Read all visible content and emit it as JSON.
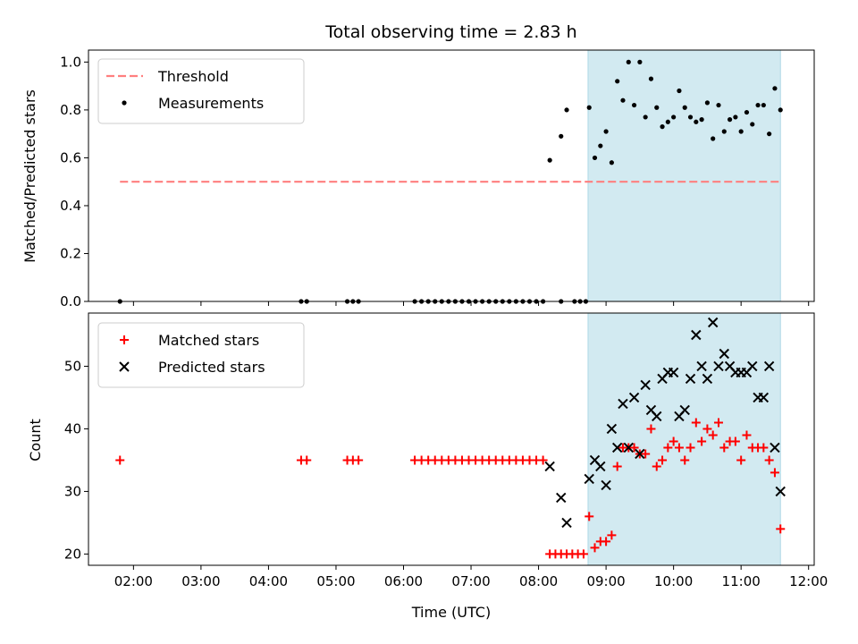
{
  "chart_data": [
    {
      "type": "scatter",
      "title": "Total observing time = 2.83 h",
      "ylabel": "Matched/Predicted stars",
      "xlabel": "",
      "ylim": [
        0,
        1.05
      ],
      "yticks": [
        "0.0",
        "0.2",
        "0.4",
        "0.6",
        "0.8",
        "1.0"
      ],
      "threshold": {
        "name": "Threshold",
        "value": 0.5,
        "x_range": [
          "01:48",
          "11:36"
        ],
        "color": "#ff7f7f",
        "style": "dashed"
      },
      "observing_window": {
        "start": "08:44",
        "end": "11:35",
        "color": "#add8e6"
      },
      "legend_position": "upper-left",
      "series": [
        {
          "name": "Measurements",
          "marker": "dot",
          "color": "#000000",
          "points": [
            [
              "01:48",
              0
            ],
            [
              "04:29",
              0
            ],
            [
              "04:34",
              0
            ],
            [
              "05:10",
              0
            ],
            [
              "05:15",
              0
            ],
            [
              "05:20",
              0
            ],
            [
              "06:10",
              0
            ],
            [
              "06:16",
              0
            ],
            [
              "06:22",
              0
            ],
            [
              "06:28",
              0
            ],
            [
              "06:34",
              0
            ],
            [
              "06:40",
              0
            ],
            [
              "06:46",
              0
            ],
            [
              "06:52",
              0
            ],
            [
              "06:58",
              0
            ],
            [
              "07:04",
              0
            ],
            [
              "07:10",
              0
            ],
            [
              "07:16",
              0
            ],
            [
              "07:22",
              0
            ],
            [
              "07:28",
              0
            ],
            [
              "07:34",
              0
            ],
            [
              "07:40",
              0
            ],
            [
              "07:46",
              0
            ],
            [
              "07:52",
              0
            ],
            [
              "07:58",
              0
            ],
            [
              "08:04",
              0
            ],
            [
              "08:20",
              0
            ],
            [
              "08:32",
              0
            ],
            [
              "08:37",
              0
            ],
            [
              "08:42",
              0
            ],
            [
              "08:10",
              0.59
            ],
            [
              "08:20",
              0.69
            ],
            [
              "08:25",
              0.8
            ],
            [
              "08:45",
              0.81
            ],
            [
              "08:50",
              0.6
            ],
            [
              "08:55",
              0.65
            ],
            [
              "09:00",
              0.71
            ],
            [
              "09:05",
              0.58
            ],
            [
              "09:10",
              0.92
            ],
            [
              "09:15",
              0.84
            ],
            [
              "09:20",
              1.0
            ],
            [
              "09:25",
              0.82
            ],
            [
              "09:30",
              1.0
            ],
            [
              "09:35",
              0.77
            ],
            [
              "09:40",
              0.93
            ],
            [
              "09:45",
              0.81
            ],
            [
              "09:50",
              0.73
            ],
            [
              "09:55",
              0.75
            ],
            [
              "10:00",
              0.77
            ],
            [
              "10:05",
              0.88
            ],
            [
              "10:10",
              0.81
            ],
            [
              "10:15",
              0.77
            ],
            [
              "10:20",
              0.75
            ],
            [
              "10:25",
              0.76
            ],
            [
              "10:30",
              0.83
            ],
            [
              "10:35",
              0.68
            ],
            [
              "10:40",
              0.82
            ],
            [
              "10:45",
              0.71
            ],
            [
              "10:50",
              0.76
            ],
            [
              "10:55",
              0.77
            ],
            [
              "11:00",
              0.71
            ],
            [
              "11:05",
              0.79
            ],
            [
              "11:10",
              0.74
            ],
            [
              "11:15",
              0.82
            ],
            [
              "11:20",
              0.82
            ],
            [
              "11:25",
              0.7
            ],
            [
              "11:30",
              0.89
            ],
            [
              "11:35",
              0.8
            ]
          ]
        }
      ]
    },
    {
      "type": "scatter",
      "title": "",
      "ylabel": "Count",
      "xlabel": "Time (UTC)",
      "ylim": [
        18.2,
        58.5
      ],
      "yticks": [
        "20",
        "30",
        "40",
        "50"
      ],
      "xlim": [
        "01:20",
        "12:05"
      ],
      "xticks": [
        "02:00",
        "03:00",
        "04:00",
        "05:00",
        "06:00",
        "07:00",
        "08:00",
        "09:00",
        "10:00",
        "11:00",
        "12:00"
      ],
      "observing_window": {
        "start": "08:44",
        "end": "11:35",
        "color": "#add8e6"
      },
      "legend_position": "upper-left",
      "series": [
        {
          "name": "Matched stars",
          "marker": "plus",
          "color": "#ff0000",
          "points": [
            [
              "01:48",
              35
            ],
            [
              "04:29",
              35
            ],
            [
              "04:34",
              35
            ],
            [
              "05:10",
              35
            ],
            [
              "05:15",
              35
            ],
            [
              "05:20",
              35
            ],
            [
              "06:10",
              35
            ],
            [
              "06:16",
              35
            ],
            [
              "06:22",
              35
            ],
            [
              "06:28",
              35
            ],
            [
              "06:34",
              35
            ],
            [
              "06:40",
              35
            ],
            [
              "06:46",
              35
            ],
            [
              "06:52",
              35
            ],
            [
              "06:58",
              35
            ],
            [
              "07:04",
              35
            ],
            [
              "07:10",
              35
            ],
            [
              "07:16",
              35
            ],
            [
              "07:22",
              35
            ],
            [
              "07:28",
              35
            ],
            [
              "07:34",
              35
            ],
            [
              "07:40",
              35
            ],
            [
              "07:46",
              35
            ],
            [
              "07:52",
              35
            ],
            [
              "07:58",
              35
            ],
            [
              "08:04",
              35
            ],
            [
              "08:10",
              20
            ],
            [
              "08:15",
              20
            ],
            [
              "08:20",
              20
            ],
            [
              "08:25",
              20
            ],
            [
              "08:30",
              20
            ],
            [
              "08:35",
              20
            ],
            [
              "08:40",
              20
            ],
            [
              "08:45",
              26
            ],
            [
              "08:50",
              21
            ],
            [
              "08:55",
              22
            ],
            [
              "09:00",
              22
            ],
            [
              "09:05",
              23
            ],
            [
              "09:10",
              34
            ],
            [
              "09:15",
              37
            ],
            [
              "09:20",
              37
            ],
            [
              "09:25",
              37
            ],
            [
              "09:30",
              36
            ],
            [
              "09:35",
              36
            ],
            [
              "09:40",
              40
            ],
            [
              "09:45",
              34
            ],
            [
              "09:50",
              35
            ],
            [
              "09:55",
              37
            ],
            [
              "10:00",
              38
            ],
            [
              "10:05",
              37
            ],
            [
              "10:10",
              35
            ],
            [
              "10:15",
              37
            ],
            [
              "10:20",
              41
            ],
            [
              "10:25",
              38
            ],
            [
              "10:30",
              40
            ],
            [
              "10:35",
              39
            ],
            [
              "10:40",
              41
            ],
            [
              "10:45",
              37
            ],
            [
              "10:50",
              38
            ],
            [
              "10:55",
              38
            ],
            [
              "11:00",
              35
            ],
            [
              "11:05",
              39
            ],
            [
              "11:10",
              37
            ],
            [
              "11:15",
              37
            ],
            [
              "11:20",
              37
            ],
            [
              "11:25",
              35
            ],
            [
              "11:30",
              33
            ],
            [
              "11:35",
              24
            ]
          ]
        },
        {
          "name": "Predicted stars",
          "marker": "x",
          "color": "#000000",
          "points": [
            [
              "08:10",
              34
            ],
            [
              "08:20",
              29
            ],
            [
              "08:25",
              25
            ],
            [
              "08:45",
              32
            ],
            [
              "08:50",
              35
            ],
            [
              "08:55",
              34
            ],
            [
              "09:00",
              31
            ],
            [
              "09:05",
              40
            ],
            [
              "09:10",
              37
            ],
            [
              "09:15",
              44
            ],
            [
              "09:20",
              37
            ],
            [
              "09:25",
              45
            ],
            [
              "09:30",
              36
            ],
            [
              "09:35",
              47
            ],
            [
              "09:40",
              43
            ],
            [
              "09:45",
              42
            ],
            [
              "09:50",
              48
            ],
            [
              "09:55",
              49
            ],
            [
              "10:00",
              49
            ],
            [
              "10:05",
              42
            ],
            [
              "10:10",
              43
            ],
            [
              "10:15",
              48
            ],
            [
              "10:20",
              55
            ],
            [
              "10:25",
              50
            ],
            [
              "10:30",
              48
            ],
            [
              "10:35",
              57
            ],
            [
              "10:40",
              50
            ],
            [
              "10:45",
              52
            ],
            [
              "10:50",
              50
            ],
            [
              "10:55",
              49
            ],
            [
              "11:00",
              49
            ],
            [
              "11:05",
              49
            ],
            [
              "11:10",
              50
            ],
            [
              "11:15",
              45
            ],
            [
              "11:20",
              45
            ],
            [
              "11:25",
              50
            ],
            [
              "11:30",
              37
            ],
            [
              "11:35",
              30
            ]
          ]
        }
      ]
    }
  ]
}
